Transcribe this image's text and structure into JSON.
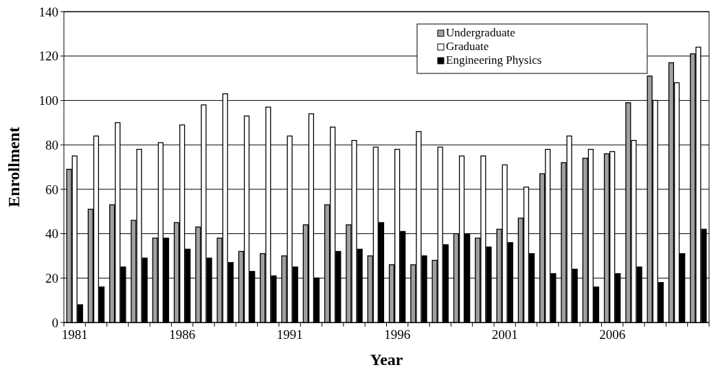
{
  "chart_data": {
    "type": "bar",
    "xlabel": "Year",
    "ylabel": "Enrollment",
    "categories": [
      "1981",
      null,
      null,
      null,
      null,
      "1986",
      null,
      null,
      null,
      null,
      "1991",
      null,
      null,
      null,
      null,
      "1996",
      null,
      null,
      null,
      null,
      "2001",
      null,
      null,
      null,
      null,
      "2006",
      null,
      null,
      null,
      null
    ],
    "series": [
      {
        "name": "Undergraduate",
        "color": "#a0a0a0",
        "values": [
          69,
          51,
          53,
          46,
          38,
          45,
          43,
          38,
          32,
          31,
          30,
          44,
          53,
          44,
          30,
          26,
          26,
          28,
          40,
          38,
          42,
          47,
          67,
          72,
          74,
          76,
          99,
          111,
          117,
          121
        ]
      },
      {
        "name": "Graduate",
        "color": "#ffffff",
        "values": [
          75,
          84,
          90,
          78,
          81,
          89,
          98,
          103,
          93,
          97,
          84,
          94,
          88,
          82,
          79,
          78,
          86,
          79,
          75,
          75,
          71,
          61,
          78,
          84,
          78,
          77,
          82,
          100,
          108,
          124
        ]
      },
      {
        "name": "Engineering Physics",
        "color": "#000000",
        "values": [
          8,
          16,
          25,
          29,
          38,
          33,
          29,
          27,
          23,
          21,
          25,
          20,
          32,
          33,
          45,
          41,
          30,
          35,
          40,
          34,
          36,
          31,
          22,
          24,
          16,
          22,
          25,
          18,
          31,
          42
        ]
      }
    ],
    "ylim": [
      0,
      140
    ],
    "yticks": [
      0,
      20,
      40,
      60,
      80,
      100,
      120,
      140
    ],
    "grid": "y",
    "legend": "top right"
  }
}
